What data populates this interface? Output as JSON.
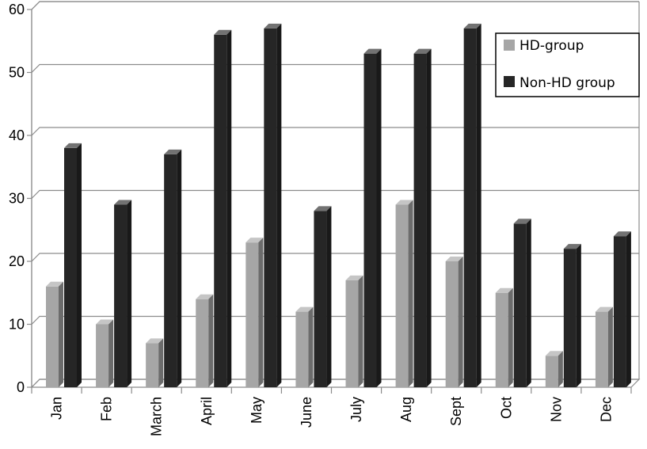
{
  "chart_data": {
    "type": "bar",
    "title": "",
    "xlabel": "",
    "ylabel": "",
    "categories": [
      "Jan",
      "Feb",
      "March",
      "April",
      "May",
      "June",
      "July",
      "Aug",
      "Sept",
      "Oct",
      "Nov",
      "Dec"
    ],
    "series": [
      {
        "name": "HD-group",
        "color": "#a6a6a6",
        "values": [
          16,
          10,
          7,
          14,
          23,
          12,
          17,
          29,
          20,
          15,
          5,
          12
        ]
      },
      {
        "name": "Non-HD group",
        "color": "#262626",
        "values": [
          38,
          29,
          37,
          56,
          57,
          28,
          53,
          53,
          57,
          26,
          22,
          24
        ]
      }
    ],
    "yticks": [
      "0",
      "10",
      "20",
      "30",
      "40",
      "50",
      "60"
    ],
    "ylim": [
      0,
      60
    ],
    "grid": "horizontal",
    "legend_position": "top-right",
    "style": "3d-clustered-bar"
  }
}
